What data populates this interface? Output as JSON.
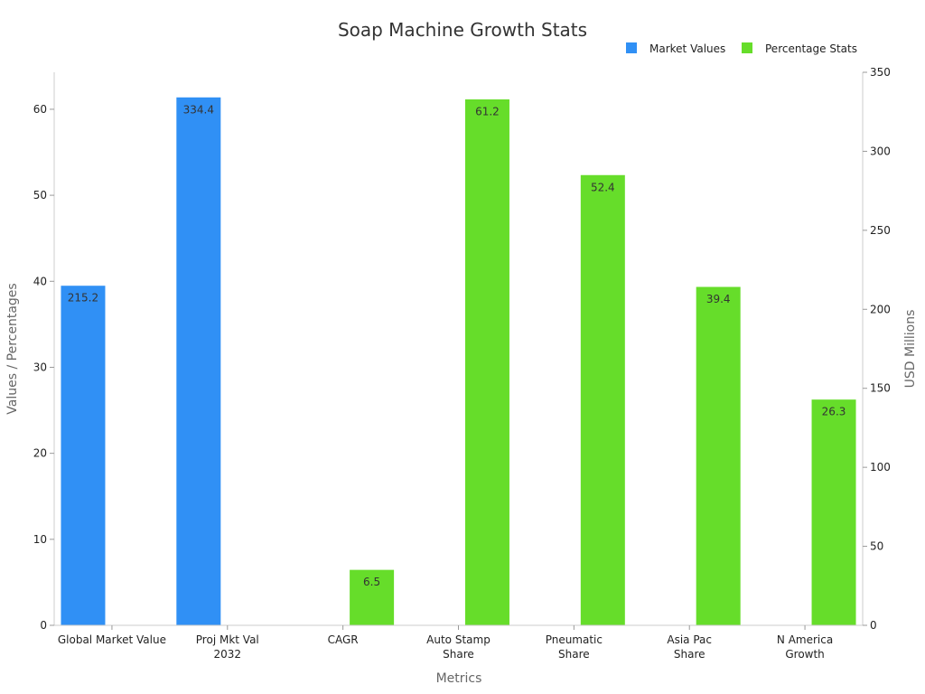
{
  "chart_data": {
    "type": "bar",
    "title": "Soap Machine Growth Stats",
    "xlabel": "Metrics",
    "ylabel": "Values / Percentages",
    "y2label": "USD Millions",
    "categories": [
      [
        "Global Market Value"
      ],
      [
        "Proj Mkt Val",
        "2032"
      ],
      [
        "CAGR"
      ],
      [
        "Auto Stamp",
        "Share"
      ],
      [
        "Pneumatic",
        "Share"
      ],
      [
        "Asia Pac",
        "Share"
      ],
      [
        "N America",
        "Growth"
      ]
    ],
    "ylim": [
      0,
      64.3
    ],
    "y2lim": [
      0,
      350
    ],
    "yticks": [
      0,
      10,
      20,
      30,
      40,
      50,
      60
    ],
    "y2ticks": [
      0,
      50,
      100,
      150,
      200,
      250,
      300,
      350
    ],
    "legend_position": "top-right",
    "series": [
      {
        "name": "Market Values",
        "color": "#3090f5",
        "axis": "right",
        "values": [
          215.2,
          334.4,
          null,
          null,
          null,
          null,
          null
        ]
      },
      {
        "name": "Percentage Stats",
        "color": "#66dd2a",
        "axis": "left",
        "values": [
          null,
          null,
          6.5,
          61.2,
          52.4,
          39.4,
          26.3
        ]
      }
    ]
  }
}
